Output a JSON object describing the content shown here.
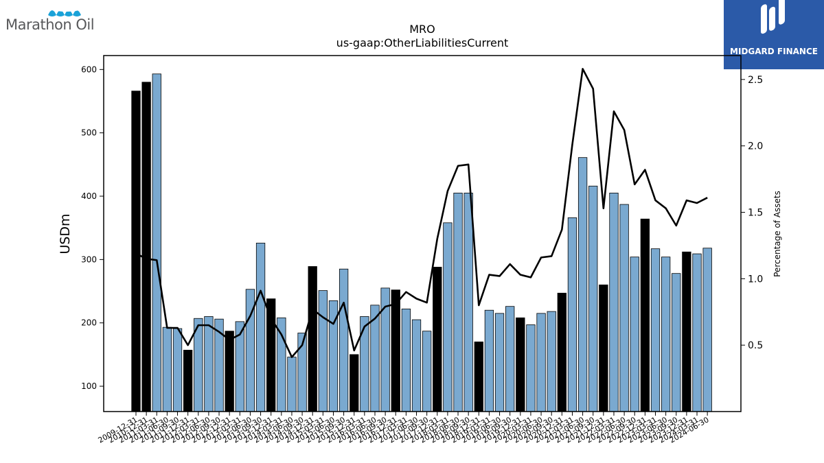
{
  "brand_left": {
    "name": "Marathon Oil"
  },
  "brand_right": {
    "name": "MIDGARD FINANCE"
  },
  "colors": {
    "bar_blue": "#7aa9d0",
    "bar_black": "#000000",
    "line": "#000000",
    "brand_blue": "#2b5aa8",
    "marathon_blue": "#1aa2d8",
    "marathon_text": "#58595b"
  },
  "chart_data": {
    "type": "bar",
    "title": "MRO",
    "subtitle": "us-gaap:OtherLiabilitiesCurrent",
    "ylabel": "USDm",
    "y2label": "Percentage of Assets",
    "ylim": [
      60,
      622
    ],
    "y2lim": [
      0.0,
      2.68
    ],
    "yticks": [
      100,
      200,
      300,
      400,
      500,
      600
    ],
    "y2ticks": [
      0.5,
      1.0,
      1.5,
      2.0,
      2.5
    ],
    "categories": [
      "2009-12-31",
      "2010-12-31",
      "2011-03-31",
      "2011-06-30",
      "2011-09-30",
      "2011-12-31",
      "2012-03-31",
      "2012-06-30",
      "2012-09-30",
      "2012-12-31",
      "2013-03-31",
      "2013-06-30",
      "2013-09-30",
      "2013-12-31",
      "2014-03-31",
      "2014-06-30",
      "2014-09-30",
      "2014-12-31",
      "2015-03-31",
      "2015-06-30",
      "2015-09-30",
      "2015-12-31",
      "2016-03-31",
      "2016-06-30",
      "2016-09-30",
      "2016-12-31",
      "2017-03-31",
      "2017-06-30",
      "2017-09-30",
      "2017-12-31",
      "2018-03-31",
      "2018-06-30",
      "2018-09-30",
      "2018-12-31",
      "2019-03-31",
      "2019-06-30",
      "2019-09-30",
      "2019-12-31",
      "2020-03-31",
      "2020-06-30",
      "2020-09-30",
      "2020-12-31",
      "2021-03-31",
      "2021-06-30",
      "2021-09-30",
      "2021-12-31",
      "2022-03-31",
      "2022-06-30",
      "2022-09-30",
      "2022-12-31",
      "2023-03-31",
      "2023-06-30",
      "2023-09-30",
      "2023-12-31",
      "2024-03-31",
      "2024-06-30"
    ],
    "values": [
      566,
      580,
      593,
      193,
      191,
      157,
      207,
      210,
      206,
      187,
      202,
      253,
      326,
      238,
      208,
      146,
      184,
      289,
      251,
      235,
      285,
      150,
      210,
      228,
      255,
      252,
      222,
      205,
      187,
      288,
      358,
      405,
      405,
      170,
      220,
      215,
      226,
      208,
      197,
      215,
      218,
      247,
      366,
      461,
      416,
      260,
      405,
      387,
      304,
      364,
      317,
      304,
      278,
      312,
      309,
      318
    ],
    "annual_flags": [
      true,
      true,
      false,
      false,
      false,
      true,
      false,
      false,
      false,
      true,
      false,
      false,
      false,
      true,
      false,
      false,
      false,
      true,
      false,
      false,
      false,
      true,
      false,
      false,
      false,
      true,
      false,
      false,
      false,
      true,
      false,
      false,
      false,
      true,
      false,
      false,
      false,
      true,
      false,
      false,
      false,
      true,
      false,
      false,
      false,
      true,
      false,
      false,
      false,
      true,
      false,
      false,
      false,
      true,
      false,
      false
    ],
    "series": [
      {
        "type": "line",
        "axis": "right",
        "values": [
          1.19,
          1.15,
          1.14,
          0.63,
          0.63,
          0.5,
          0.65,
          0.65,
          0.6,
          0.54,
          0.58,
          0.72,
          0.91,
          0.7,
          0.58,
          0.41,
          0.5,
          0.77,
          0.71,
          0.66,
          0.82,
          0.46,
          0.64,
          0.7,
          0.79,
          0.81,
          0.9,
          0.85,
          0.82,
          1.3,
          1.66,
          1.85,
          1.86,
          0.8,
          1.03,
          1.02,
          1.11,
          1.03,
          1.01,
          1.16,
          1.17,
          1.37,
          2.01,
          2.58,
          2.43,
          1.53,
          2.26,
          2.12,
          1.71,
          1.82,
          1.59,
          1.53,
          1.4,
          1.59,
          1.57,
          1.61
        ]
      }
    ],
    "grid": false,
    "legend": "none"
  }
}
